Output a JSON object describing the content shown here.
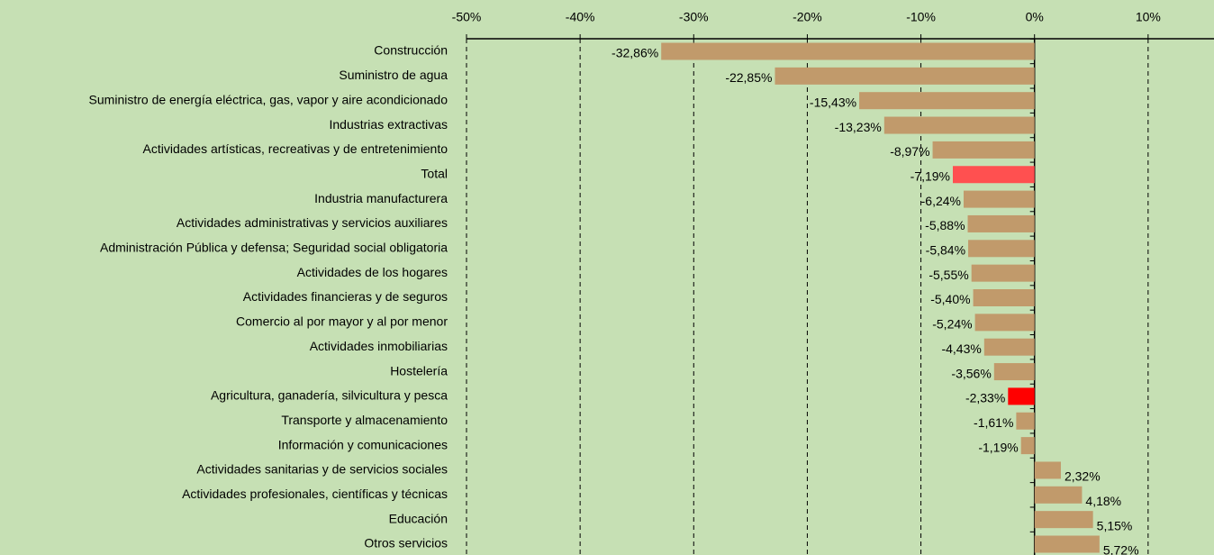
{
  "chart_data": {
    "type": "hbar",
    "categories": [
      "Construcción",
      "Suministro de agua",
      "Suministro de energía eléctrica, gas, vapor y aire acondicionado",
      "Industrias extractivas",
      "Actividades artísticas, recreativas y de entretenimiento",
      "Total",
      "Industria manufacturera",
      "Actividades administrativas y servicios auxiliares",
      "Administración Pública y defensa; Seguridad social obligatoria",
      "Actividades de los hogares",
      "Actividades financieras y de seguros",
      "Comercio al por mayor y al por menor",
      "Actividades inmobiliarias",
      "Hostelería",
      "Agricultura, ganadería, silvicultura y pesca",
      "Transporte y almacenamiento",
      "Información y comunicaciones",
      "Actividades sanitarias y de servicios sociales",
      "Actividades profesionales, científicas y técnicas",
      "Educación",
      "Otros servicios"
    ],
    "values": [
      -32.86,
      -22.85,
      -15.43,
      -13.23,
      -8.97,
      -7.19,
      -6.24,
      -5.88,
      -5.84,
      -5.55,
      -5.4,
      -5.24,
      -4.43,
      -3.56,
      -2.33,
      -1.61,
      -1.19,
      2.32,
      4.18,
      5.15,
      5.72
    ],
    "value_labels": [
      "-32,86%",
      "-22,85%",
      "-15,43%",
      "-13,23%",
      "-8,97%",
      "-7,19%",
      "-6,24%",
      "-5,88%",
      "-5,84%",
      "-5,55%",
      "-5,40%",
      "-5,24%",
      "-4,43%",
      "-3,56%",
      "-2,33%",
      "-1,61%",
      "-1,19%",
      "2,32%",
      "4,18%",
      "5,15%",
      "5,72%"
    ],
    "colors": [
      "#c19a6b",
      "#c19a6b",
      "#c19a6b",
      "#c19a6b",
      "#c19a6b",
      "#ff5050",
      "#c19a6b",
      "#c19a6b",
      "#c19a6b",
      "#c19a6b",
      "#c19a6b",
      "#c19a6b",
      "#c19a6b",
      "#c19a6b",
      "#ff0000",
      "#c19a6b",
      "#c19a6b",
      "#c19a6b",
      "#c19a6b",
      "#c19a6b",
      "#c19a6b"
    ],
    "xlim": [
      -50,
      15.8
    ],
    "xticks": [
      {
        "value": -50,
        "label": "-50%"
      },
      {
        "value": -40,
        "label": "-40%"
      },
      {
        "value": -30,
        "label": "-30%"
      },
      {
        "value": -20,
        "label": "-20%"
      },
      {
        "value": -10,
        "label": "-10%"
      },
      {
        "value": 0,
        "label": "0%"
      },
      {
        "value": 10,
        "label": "10%"
      }
    ],
    "grid": true
  }
}
